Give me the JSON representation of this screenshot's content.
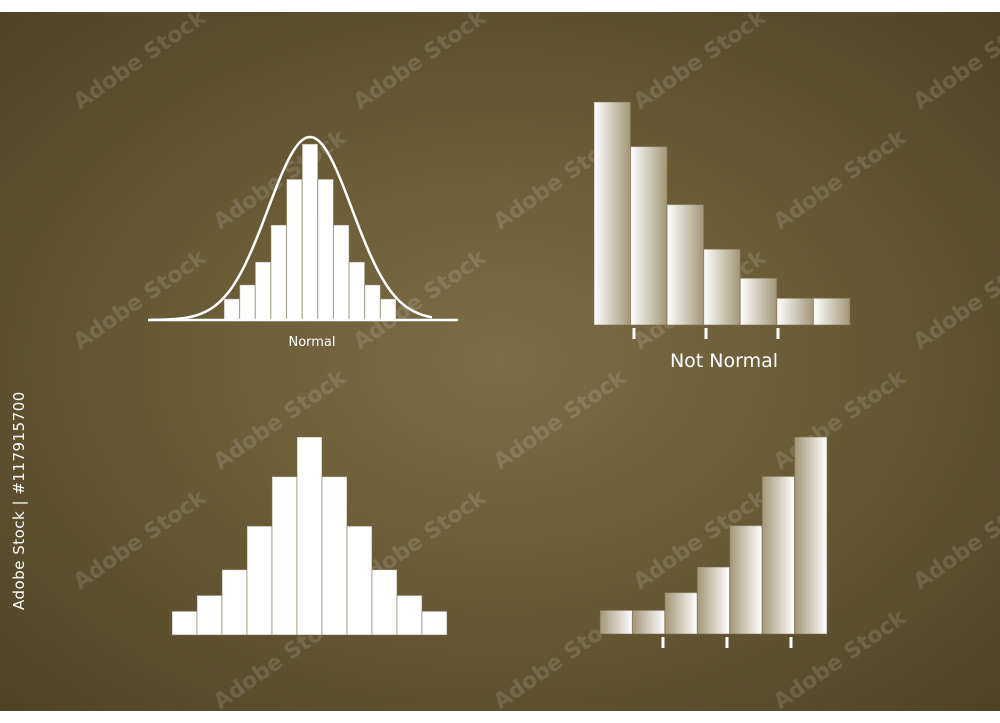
{
  "watermark": {
    "text": "Adobe Stock",
    "id_text": "Adobe Stock | #117915700"
  },
  "colors": {
    "background": "#6a5b37",
    "bar": "#ffffff",
    "faded_bar": "#a39677"
  },
  "chart_data": [
    {
      "type": "bar",
      "subtype": "histogram-with-normal-curve",
      "label": "Normal",
      "values": [
        12,
        20,
        33,
        54,
        80,
        100,
        80,
        54,
        33,
        20,
        12
      ],
      "curve": "normal",
      "grid": false
    },
    {
      "type": "bar",
      "subtype": "histogram-right-skewed",
      "label": "Not Normal",
      "values": [
        100,
        80,
        54,
        34,
        21,
        12,
        12
      ],
      "ticks": 3,
      "grid": false,
      "fill": "gradient white to faded"
    },
    {
      "type": "bar",
      "subtype": "histogram-symmetric",
      "label": "",
      "values": [
        12,
        20,
        33,
        55,
        80,
        100,
        80,
        55,
        33,
        20,
        12
      ],
      "grid": false
    },
    {
      "type": "bar",
      "subtype": "histogram-left-skewed",
      "label": "",
      "values": [
        12,
        12,
        21,
        34,
        55,
        80,
        100
      ],
      "ticks": 3,
      "grid": false,
      "fill": "gradient faded to white"
    }
  ]
}
